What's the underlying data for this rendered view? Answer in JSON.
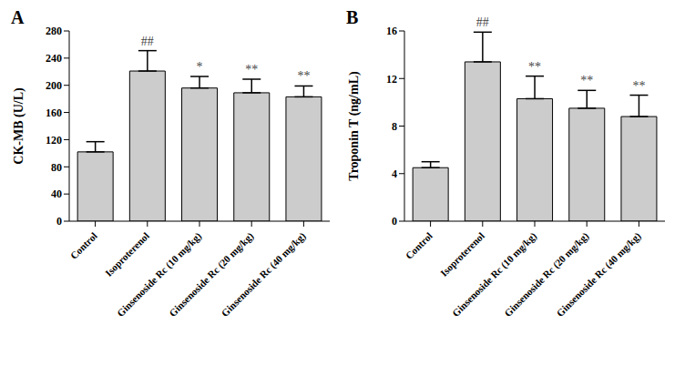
{
  "chart_data": [
    {
      "type": "bar",
      "title": "A",
      "y_label": "CK-MB (U/L)",
      "categories": [
        "Control",
        "Isoproterenol",
        "Ginsenoside Rc (10 mg/kg)",
        "Ginsenoside Rc (20 mg/kg)",
        "Ginsenoside Rc (40 mg/kg)"
      ],
      "values": [
        102,
        221,
        196,
        189,
        183
      ],
      "errors": [
        15,
        30,
        17,
        20,
        16
      ],
      "annotations": [
        null,
        "##",
        "*",
        "**",
        "**"
      ],
      "color": "#cccccc",
      "ylim": [
        0,
        280
      ],
      "yticks": [
        0,
        40,
        80,
        120,
        160,
        200,
        240,
        280
      ]
    },
    {
      "type": "bar",
      "title": "B",
      "y_label": "Troponin T (ng/mL)",
      "categories": [
        "Control",
        "Isoproterenol",
        "Ginsenoside Rc (10 mg/kg)",
        "Ginsenoside Rc (20 mg/kg)",
        "Ginsenoside Rc (40 mg/kg)"
      ],
      "values": [
        4.5,
        13.4,
        10.3,
        9.5,
        8.8
      ],
      "errors": [
        0.5,
        2.5,
        1.9,
        1.5,
        1.8
      ],
      "annotations": [
        null,
        "##",
        "**",
        "**",
        "**"
      ],
      "color": "#cccccc",
      "ylim": [
        0,
        16
      ],
      "yticks": [
        0,
        4,
        8,
        12,
        16
      ]
    }
  ]
}
